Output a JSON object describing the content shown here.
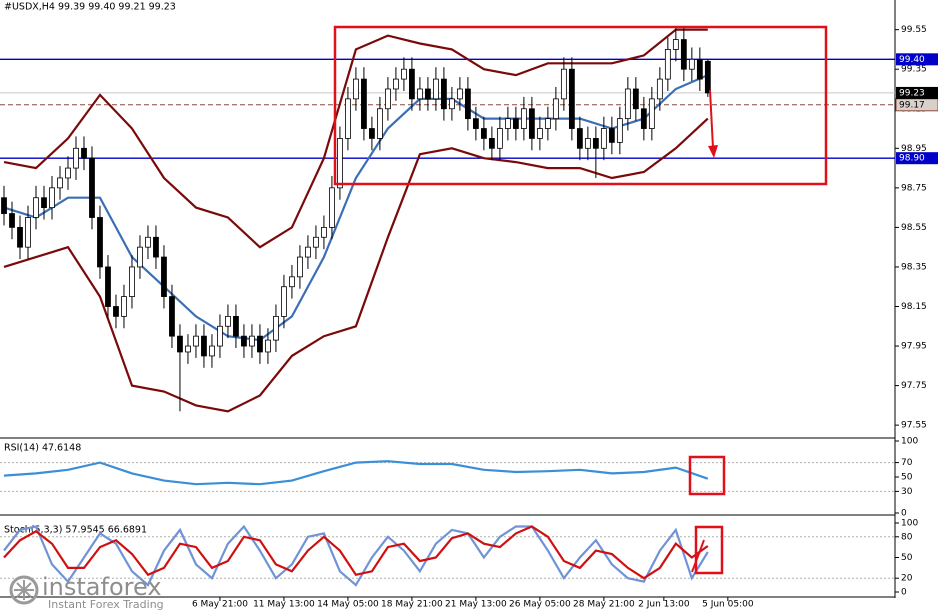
{
  "chart_data": [
    {
      "type": "candlestick",
      "title": "#USDX,H4  99.39 99.40 99.21 99.23",
      "open": [
        98.7,
        98.62,
        98.55,
        98.45,
        98.6,
        98.7,
        98.65,
        98.75,
        98.8,
        98.85,
        98.95,
        98.9,
        98.6,
        98.35,
        98.15,
        98.1,
        98.2,
        98.35,
        98.45,
        98.5,
        98.4,
        98.2,
        98.0,
        97.92,
        97.95,
        98.0,
        97.9,
        97.95,
        98.05,
        98.1,
        98.0,
        97.95,
        98.0,
        97.92,
        97.98,
        98.1,
        98.25,
        98.3,
        98.4,
        98.45,
        98.5,
        98.55,
        98.75,
        99.0,
        99.2,
        99.3,
        99.05,
        99.0,
        99.15,
        99.25,
        99.3,
        99.35,
        99.2,
        99.25,
        99.2,
        99.3,
        99.15,
        99.2,
        99.25,
        99.1,
        99.05,
        99.0,
        98.95,
        99.05,
        99.1,
        99.05,
        99.15,
        99.0,
        99.05,
        99.1,
        99.2,
        99.35,
        99.05,
        98.95,
        99.0,
        98.95,
        99.05,
        98.98,
        99.1,
        99.25,
        99.15,
        99.05,
        99.2,
        99.3,
        99.45,
        99.5,
        99.35,
        99.4,
        99.39
      ],
      "high": [
        98.76,
        98.68,
        98.61,
        98.66,
        98.76,
        98.76,
        98.81,
        98.86,
        98.91,
        99.01,
        99.01,
        98.96,
        98.66,
        98.41,
        98.21,
        98.26,
        98.41,
        98.51,
        98.56,
        98.56,
        98.46,
        98.26,
        98.06,
        98.01,
        98.06,
        98.06,
        98.01,
        98.11,
        98.16,
        98.16,
        98.06,
        98.06,
        98.06,
        98.04,
        98.16,
        98.31,
        98.36,
        98.46,
        98.51,
        98.56,
        98.61,
        98.81,
        99.06,
        99.26,
        99.36,
        99.36,
        99.11,
        99.21,
        99.31,
        99.36,
        99.41,
        99.41,
        99.31,
        99.31,
        99.36,
        99.36,
        99.26,
        99.31,
        99.31,
        99.16,
        99.11,
        99.06,
        99.11,
        99.16,
        99.16,
        99.21,
        99.21,
        99.11,
        99.16,
        99.26,
        99.41,
        99.41,
        99.11,
        99.06,
        99.06,
        99.11,
        99.11,
        99.16,
        99.31,
        99.31,
        99.21,
        99.26,
        99.36,
        99.51,
        99.56,
        99.56,
        99.46,
        99.46,
        99.4
      ],
      "low": [
        98.56,
        98.49,
        98.39,
        98.39,
        98.54,
        98.59,
        98.59,
        98.69,
        98.74,
        98.79,
        98.84,
        98.54,
        98.29,
        98.09,
        98.04,
        98.04,
        98.14,
        98.29,
        98.39,
        98.34,
        98.14,
        97.94,
        97.62,
        97.86,
        97.89,
        97.84,
        97.84,
        97.89,
        97.99,
        97.94,
        97.89,
        97.89,
        97.86,
        97.86,
        97.92,
        98.04,
        98.19,
        98.24,
        98.34,
        98.39,
        98.44,
        98.49,
        98.69,
        98.94,
        99.14,
        98.99,
        98.94,
        98.94,
        99.09,
        99.19,
        99.24,
        99.14,
        99.14,
        99.14,
        99.14,
        99.09,
        99.09,
        99.14,
        99.04,
        98.99,
        98.94,
        98.89,
        98.89,
        98.99,
        98.99,
        98.99,
        98.94,
        98.94,
        98.99,
        99.04,
        99.14,
        98.99,
        98.89,
        98.89,
        98.8,
        98.89,
        98.92,
        98.92,
        99.04,
        99.09,
        98.99,
        98.99,
        99.14,
        99.24,
        99.39,
        99.29,
        99.29,
        99.24,
        99.21
      ],
      "close": [
        98.62,
        98.55,
        98.45,
        98.6,
        98.7,
        98.65,
        98.75,
        98.8,
        98.85,
        98.95,
        98.9,
        98.6,
        98.35,
        98.15,
        98.1,
        98.2,
        98.35,
        98.45,
        98.5,
        98.4,
        98.2,
        98.0,
        97.92,
        97.95,
        98.0,
        97.9,
        97.95,
        98.05,
        98.1,
        98.0,
        97.95,
        98.0,
        97.92,
        97.98,
        98.1,
        98.25,
        98.3,
        98.4,
        98.45,
        98.5,
        98.55,
        98.75,
        99.0,
        99.2,
        99.3,
        99.05,
        99.0,
        99.15,
        99.25,
        99.3,
        99.35,
        99.2,
        99.25,
        99.2,
        99.3,
        99.15,
        99.2,
        99.25,
        99.1,
        99.05,
        99.0,
        98.95,
        99.05,
        99.1,
        99.05,
        99.15,
        99.0,
        99.05,
        99.1,
        99.2,
        99.35,
        99.05,
        98.95,
        99.0,
        98.95,
        99.05,
        98.98,
        99.1,
        99.25,
        99.15,
        99.05,
        99.2,
        99.3,
        99.45,
        99.5,
        99.35,
        99.4,
        99.3,
        99.23
      ],
      "series": [
        {
          "color": "#7a0a0a",
          "x": [
            0,
            4,
            8,
            12,
            16,
            20,
            24,
            28,
            32,
            36,
            40,
            44,
            48,
            52,
            56,
            60,
            64,
            68,
            72,
            76,
            80,
            84,
            88
          ],
          "values": [
            98.88,
            98.85,
            99.0,
            99.22,
            99.05,
            98.8,
            98.65,
            98.6,
            98.45,
            98.55,
            98.9,
            99.45,
            99.52,
            99.48,
            99.45,
            99.35,
            99.32,
            99.38,
            99.38,
            99.38,
            99.42,
            99.55,
            99.55
          ]
        },
        {
          "color": "#7a0a0a",
          "x": [
            0,
            4,
            8,
            12,
            16,
            20,
            24,
            28,
            32,
            36,
            40,
            44,
            48,
            52,
            56,
            60,
            64,
            68,
            72,
            76,
            80,
            84,
            88
          ],
          "values": [
            98.35,
            98.4,
            98.45,
            98.2,
            97.75,
            97.72,
            97.65,
            97.62,
            97.7,
            97.9,
            98.0,
            98.05,
            98.5,
            98.92,
            98.95,
            98.9,
            98.88,
            98.85,
            98.85,
            98.8,
            98.83,
            98.95,
            99.1
          ]
        },
        {
          "color": "#3b6fb5",
          "x": [
            0,
            4,
            8,
            12,
            16,
            20,
            24,
            28,
            32,
            36,
            40,
            44,
            48,
            52,
            56,
            60,
            64,
            68,
            72,
            76,
            80,
            84,
            88
          ],
          "values": [
            98.65,
            98.6,
            98.7,
            98.7,
            98.4,
            98.25,
            98.1,
            98.0,
            97.98,
            98.1,
            98.4,
            98.8,
            99.05,
            99.2,
            99.2,
            99.1,
            99.1,
            99.1,
            99.1,
            99.05,
            99.1,
            99.25,
            99.32
          ]
        }
      ],
      "xlim": [
        -0.5,
        111.4
      ],
      "ylim": [
        97.49,
        99.7
      ],
      "yticks": [
        99.55,
        99.35,
        99.15,
        98.95,
        98.75,
        98.55,
        98.35,
        98.15,
        97.95,
        97.75,
        97.55
      ],
      "xticks": [
        {
          "value": 27,
          "label": "6 May 21:00"
        },
        {
          "value": 35,
          "label": "11 May 13:00"
        },
        {
          "value": 43,
          "label": "14 May 05:00"
        },
        {
          "value": 51,
          "label": "18 May 21:00"
        },
        {
          "value": 59,
          "label": "21 May 13:00"
        },
        {
          "value": 67,
          "label": "26 May 05:00"
        },
        {
          "value": 75,
          "label": "28 May 21:00"
        },
        {
          "value": 82.5,
          "label": "2 Jun 13:00"
        },
        {
          "value": 90.5,
          "label": "5 Jun 05:00"
        }
      ],
      "levels": [
        {
          "value": 99.4,
          "label": "99.40",
          "color": "#0000c8"
        },
        {
          "value": 98.9,
          "label": "98.90",
          "color": "#0000c8"
        }
      ],
      "price_line": {
        "value": 99.17,
        "label": "99.17",
        "color": "#8b4a3a"
      },
      "current": {
        "value": 99.23,
        "label": "99.23",
        "color": "#000000"
      }
    },
    {
      "type": "line",
      "title": "RSI(14) 47.6148",
      "series": [
        {
          "color": "#3a8fd8",
          "x": [
            0,
            4,
            8,
            12,
            16,
            20,
            24,
            28,
            32,
            36,
            40,
            44,
            48,
            52,
            56,
            60,
            64,
            68,
            72,
            76,
            80,
            84,
            88
          ],
          "values": [
            52,
            55,
            60,
            70,
            55,
            45,
            40,
            42,
            40,
            45,
            58,
            70,
            72,
            68,
            68,
            60,
            57,
            58,
            60,
            55,
            57,
            63,
            47.61
          ]
        }
      ],
      "xlim": [
        -0.5,
        111.4
      ],
      "ylim": [
        0,
        100
      ],
      "yticks": [
        100,
        70,
        50,
        30,
        0
      ],
      "levels": [
        70,
        30
      ]
    },
    {
      "type": "line",
      "title": "Stoch(5,3,3) 57.9545 66.6891",
      "series": [
        {
          "color": "#6f93d6",
          "x": [
            0,
            2,
            4,
            6,
            8,
            10,
            12,
            14,
            16,
            18,
            20,
            22,
            24,
            26,
            28,
            30,
            32,
            34,
            36,
            38,
            40,
            42,
            44,
            46,
            48,
            50,
            52,
            54,
            56,
            58,
            60,
            62,
            64,
            66,
            68,
            70,
            72,
            74,
            76,
            78,
            80,
            82,
            84,
            86,
            88
          ],
          "values": [
            60,
            90,
            95,
            40,
            15,
            50,
            85,
            70,
            30,
            10,
            60,
            90,
            40,
            20,
            70,
            95,
            60,
            20,
            40,
            80,
            85,
            30,
            10,
            50,
            80,
            60,
            30,
            70,
            90,
            85,
            50,
            80,
            95,
            95,
            60,
            20,
            50,
            75,
            40,
            20,
            15,
            60,
            90,
            20,
            57.95
          ]
        },
        {
          "color": "#d01010",
          "x": [
            0,
            2,
            4,
            6,
            8,
            10,
            12,
            14,
            16,
            18,
            20,
            22,
            24,
            26,
            28,
            30,
            32,
            34,
            36,
            38,
            40,
            42,
            44,
            46,
            48,
            50,
            52,
            54,
            56,
            58,
            60,
            62,
            64,
            66,
            68,
            70,
            72,
            74,
            76,
            78,
            80,
            82,
            84,
            86,
            88
          ],
          "values": [
            50,
            75,
            88,
            70,
            35,
            35,
            65,
            75,
            55,
            25,
            35,
            70,
            65,
            35,
            45,
            80,
            75,
            40,
            30,
            60,
            80,
            60,
            25,
            30,
            65,
            70,
            45,
            50,
            78,
            85,
            70,
            65,
            85,
            95,
            80,
            45,
            35,
            60,
            55,
            35,
            20,
            35,
            70,
            50,
            66.69
          ]
        }
      ],
      "xlim": [
        -0.5,
        111.4
      ],
      "ylim": [
        0,
        100
      ],
      "yticks": [
        100,
        80,
        50,
        20,
        0
      ],
      "levels": [
        80,
        20
      ]
    }
  ],
  "watermark": {
    "brand": "instaforex",
    "tagline": "Instant Forex Trading"
  }
}
